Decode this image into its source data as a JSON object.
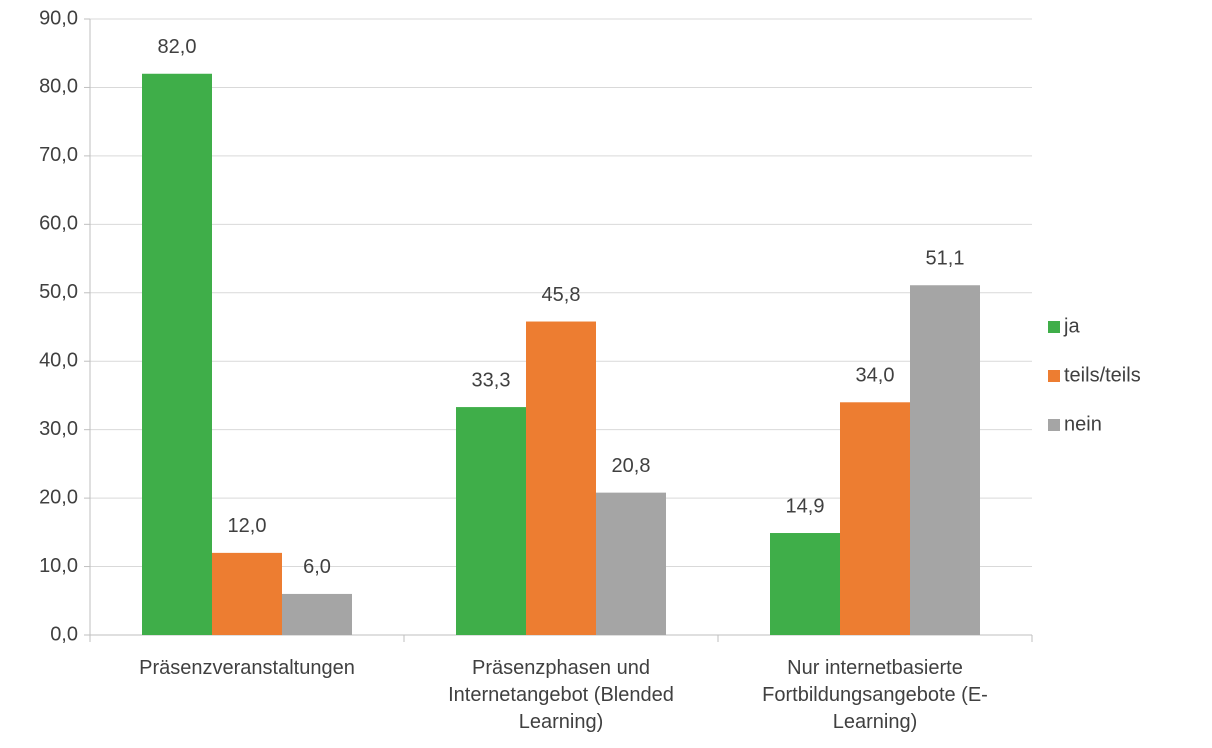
{
  "chart_data": {
    "type": "bar",
    "categories": [
      "Präsenzveranstaltungen",
      "Präsenzphasen und Internetangebot (Blended Learning)",
      "Nur internetbasierte Fortbildungsangebote (E-Learning)"
    ],
    "series": [
      {
        "name": "ja",
        "color": "#3fae49",
        "values": [
          82.0,
          33.3,
          14.9
        ],
        "value_labels": [
          "82,0",
          "33,3",
          "14,9"
        ]
      },
      {
        "name": "teils/teils",
        "color": "#ed7d31",
        "values": [
          12.0,
          45.8,
          34.0
        ],
        "value_labels": [
          "12,0",
          "45,8",
          "34,0"
        ]
      },
      {
        "name": "nein",
        "color": "#a5a5a5",
        "values": [
          6.0,
          20.8,
          51.1
        ],
        "value_labels": [
          "6,0",
          "20,8",
          "51,1"
        ]
      }
    ],
    "ylim": [
      0,
      90
    ],
    "yticks": [
      {
        "value": 0,
        "label": "0,0"
      },
      {
        "value": 10,
        "label": "10,0"
      },
      {
        "value": 20,
        "label": "20,0"
      },
      {
        "value": 30,
        "label": "30,0"
      },
      {
        "value": 40,
        "label": "40,0"
      },
      {
        "value": 50,
        "label": "50,0"
      },
      {
        "value": 60,
        "label": "60,0"
      },
      {
        "value": 70,
        "label": "70,0"
      },
      {
        "value": 80,
        "label": "80,0"
      },
      {
        "value": 90,
        "label": "90,0"
      }
    ],
    "grid": true,
    "legend": "right"
  }
}
